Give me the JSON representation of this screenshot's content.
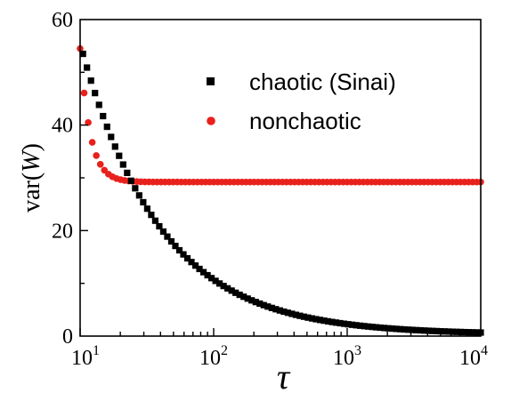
{
  "chart_data": {
    "type": "scatter",
    "title": "",
    "xlabel": "τ",
    "ylabel": {
      "prefix": "var",
      "open": "(",
      "symbol": "W",
      "close": ")"
    },
    "xscale": "log",
    "xlim": [
      10,
      10000
    ],
    "ylim": [
      0,
      60
    ],
    "x_ticks": [
      {
        "base": "10",
        "exp": "1"
      },
      {
        "base": "10",
        "exp": "2"
      },
      {
        "base": "10",
        "exp": "3"
      },
      {
        "base": "10",
        "exp": "4"
      }
    ],
    "y_ticks": [
      "0",
      "20",
      "40",
      "60"
    ],
    "grid": false,
    "legend": "top-right",
    "series": [
      {
        "name": "chaotic (Sinai)",
        "marker": "square",
        "color": "#000000",
        "x_range": [
          10.5,
          10000
        ],
        "points": 100,
        "y_profile": {
          "start": 53.5,
          "start_x": 10.5,
          "decay_log_per_point": 0.0303,
          "floor": 0.3,
          "shape": "exponential-in-index"
        }
      },
      {
        "name": "nonchaotic",
        "marker": "circle",
        "color": "#e8211d",
        "x_range": [
          10,
          10000
        ],
        "points": 100,
        "y_profile": {
          "start": 54.5,
          "plateau": 29.2
        }
      }
    ]
  }
}
